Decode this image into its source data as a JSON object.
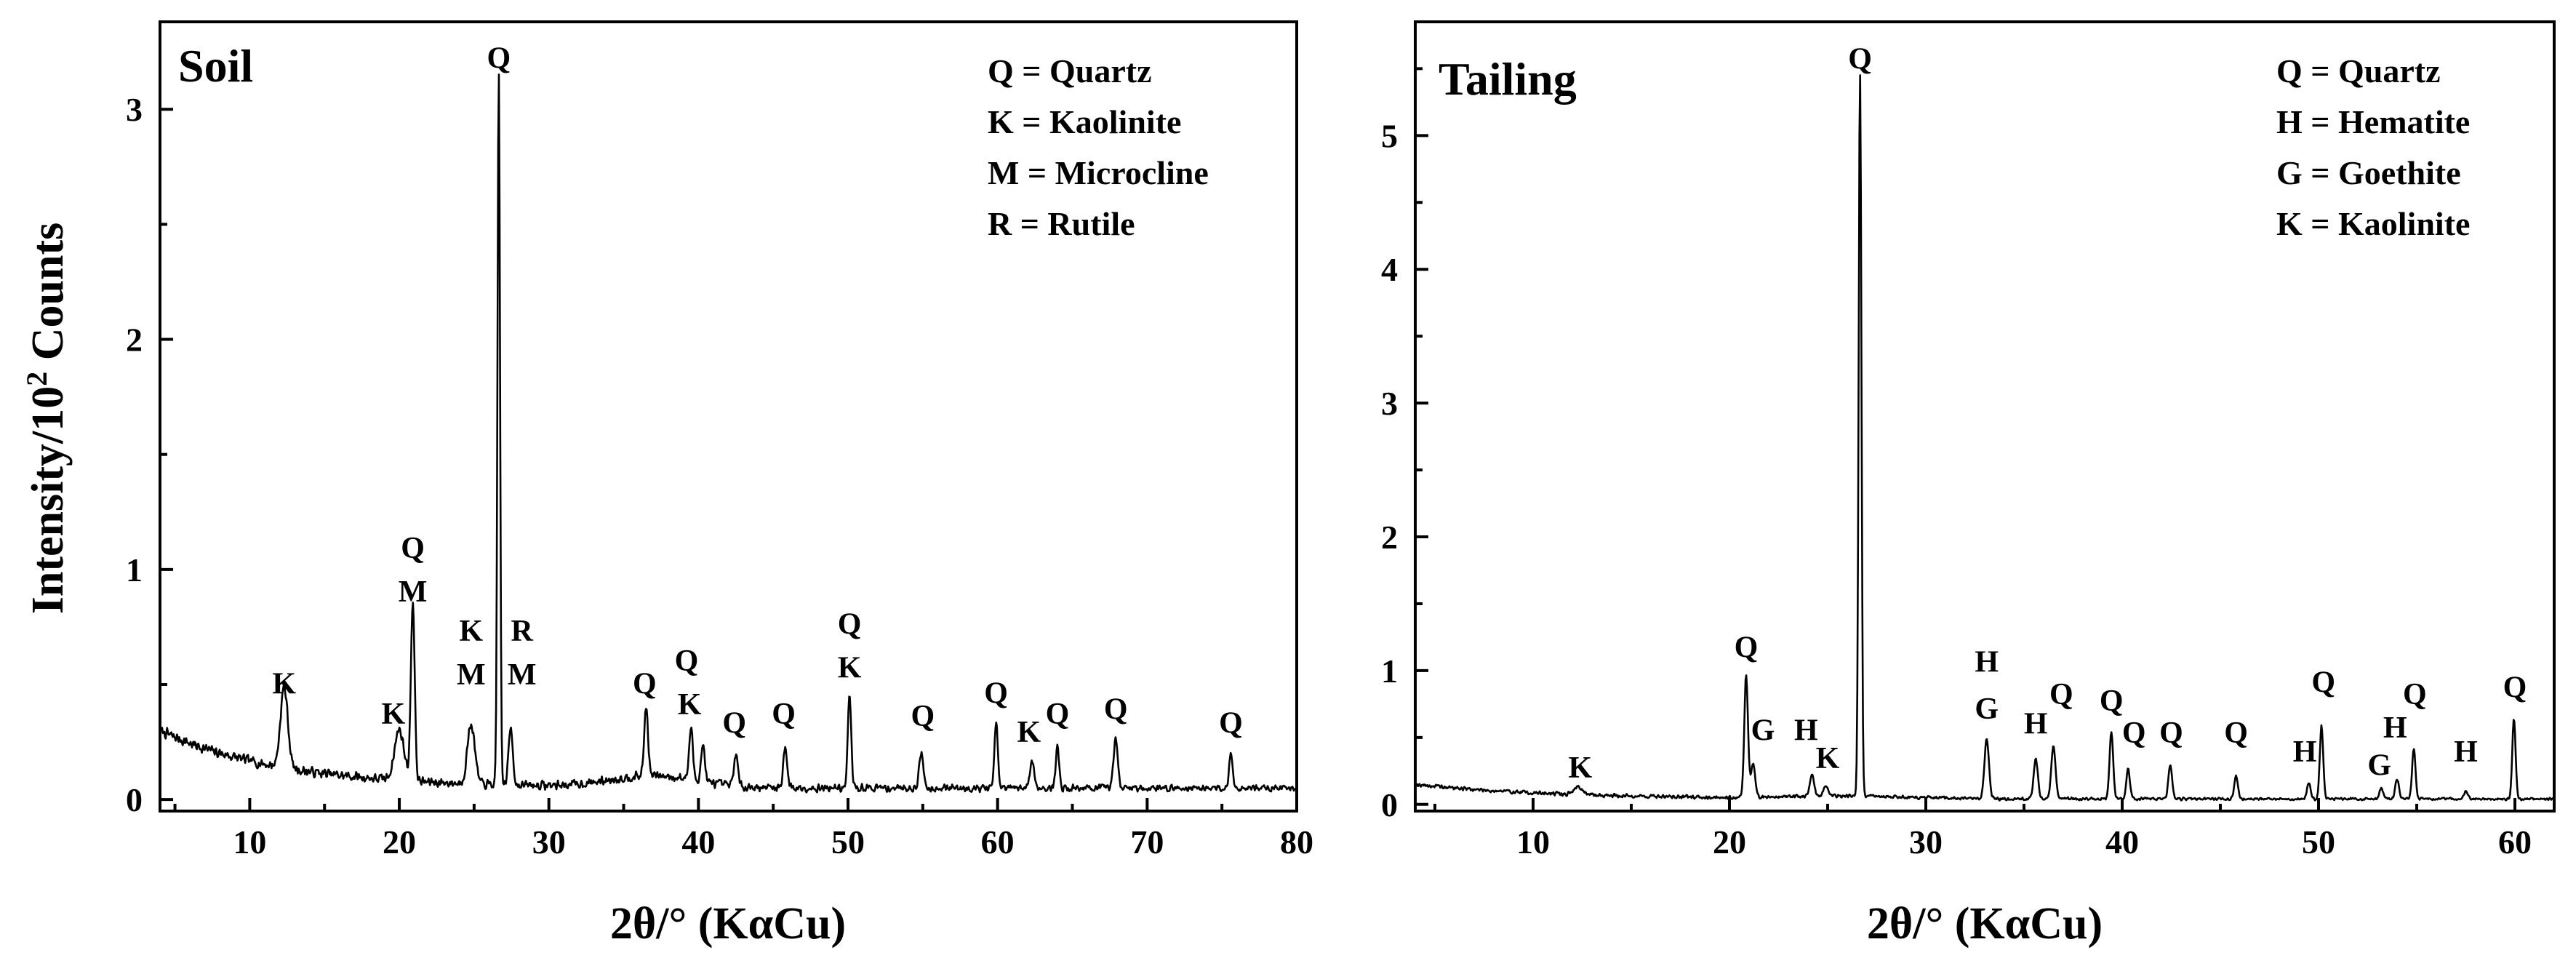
{
  "y_axis_label_main": "Intensity/10",
  "y_axis_label_sup": "2",
  "y_axis_label_tail": " Counts",
  "chart_data": [
    {
      "type": "line",
      "title": "Soil",
      "xlabel": "2θ/° (KαCu)",
      "ylabel": "Intensity/10² Counts",
      "xlim": [
        4,
        80
      ],
      "ylim": [
        -0.05,
        3.38
      ],
      "x_ticks": [
        10,
        20,
        30,
        40,
        50,
        60,
        70,
        80
      ],
      "y_ticks": [
        0,
        1,
        2,
        3
      ],
      "grid": false,
      "legend_position": "top-right",
      "legend": [
        "Q = Quartz",
        "K = Kaolinite",
        "M = Microcline",
        "R = Rutile"
      ],
      "background": {
        "start": 0.3,
        "end": 0.05,
        "decay": 8,
        "noise": 0.045,
        "hump_x": 37,
        "hump_height": 0.05
      },
      "peaks": [
        {
          "x": 12.3,
          "y": 0.35,
          "w": 0.35
        },
        {
          "x": 20.0,
          "y": 0.22,
          "w": 0.45
        },
        {
          "x": 20.9,
          "y": 0.78,
          "w": 0.18
        },
        {
          "x": 24.8,
          "y": 0.26,
          "w": 0.35
        },
        {
          "x": 26.65,
          "y": 3.1,
          "w": 0.12
        },
        {
          "x": 27.45,
          "y": 0.25,
          "w": 0.2
        },
        {
          "x": 36.5,
          "y": 0.3,
          "w": 0.18
        },
        {
          "x": 39.5,
          "y": 0.22,
          "w": 0.18
        },
        {
          "x": 40.3,
          "y": 0.16,
          "w": 0.18
        },
        {
          "x": 42.5,
          "y": 0.14,
          "w": 0.18
        },
        {
          "x": 45.8,
          "y": 0.18,
          "w": 0.18
        },
        {
          "x": 50.1,
          "y": 0.4,
          "w": 0.16
        },
        {
          "x": 54.9,
          "y": 0.15,
          "w": 0.2
        },
        {
          "x": 59.9,
          "y": 0.28,
          "w": 0.16
        },
        {
          "x": 62.3,
          "y": 0.12,
          "w": 0.2
        },
        {
          "x": 64.0,
          "y": 0.18,
          "w": 0.16
        },
        {
          "x": 67.9,
          "y": 0.22,
          "w": 0.2
        },
        {
          "x": 75.6,
          "y": 0.15,
          "w": 0.16
        }
      ],
      "annotations": [
        {
          "x": 26.65,
          "y": 3.18,
          "label": "Q"
        },
        {
          "x": 12.3,
          "y": 0.46,
          "label": "K"
        },
        {
          "x": 19.6,
          "y": 0.33,
          "label": "K"
        },
        {
          "x": 20.9,
          "y": 1.05,
          "label": "Q"
        },
        {
          "x": 20.9,
          "y": 0.86,
          "label": "M"
        },
        {
          "x": 24.8,
          "y": 0.69,
          "label": "K"
        },
        {
          "x": 24.8,
          "y": 0.5,
          "label": "M"
        },
        {
          "x": 28.2,
          "y": 0.69,
          "label": "R"
        },
        {
          "x": 28.2,
          "y": 0.5,
          "label": "M"
        },
        {
          "x": 36.4,
          "y": 0.46,
          "label": "Q"
        },
        {
          "x": 39.2,
          "y": 0.56,
          "label": "Q"
        },
        {
          "x": 39.4,
          "y": 0.37,
          "label": "K"
        },
        {
          "x": 42.4,
          "y": 0.29,
          "label": "Q"
        },
        {
          "x": 45.7,
          "y": 0.33,
          "label": "Q"
        },
        {
          "x": 50.1,
          "y": 0.72,
          "label": "Q"
        },
        {
          "x": 50.1,
          "y": 0.53,
          "label": "K"
        },
        {
          "x": 55.0,
          "y": 0.32,
          "label": "Q"
        },
        {
          "x": 59.9,
          "y": 0.42,
          "label": "Q"
        },
        {
          "x": 62.1,
          "y": 0.25,
          "label": "K"
        },
        {
          "x": 64.0,
          "y": 0.33,
          "label": "Q"
        },
        {
          "x": 67.9,
          "y": 0.35,
          "label": "Q"
        },
        {
          "x": 75.6,
          "y": 0.29,
          "label": "Q"
        }
      ]
    },
    {
      "type": "line",
      "title": "Tailing",
      "xlabel": "2θ/° (KαCu)",
      "ylabel": "",
      "xlim": [
        4,
        62
      ],
      "ylim": [
        -0.05,
        5.85
      ],
      "x_ticks": [
        10,
        20,
        30,
        40,
        50,
        60
      ],
      "y_ticks": [
        0,
        1,
        2,
        3,
        4,
        5
      ],
      "grid": false,
      "legend_position": "top-right",
      "legend": [
        "Q = Quartz",
        "H = Hematite",
        "G = Goethite",
        "K = Kaolinite"
      ],
      "background": {
        "start": 0.15,
        "end": 0.04,
        "decay": 7,
        "noise": 0.03,
        "hump_x": 26,
        "hump_height": 0.02
      },
      "peaks": [
        {
          "x": 12.3,
          "y": 0.06,
          "w": 0.3
        },
        {
          "x": 20.85,
          "y": 0.92,
          "w": 0.13
        },
        {
          "x": 21.2,
          "y": 0.25,
          "w": 0.15
        },
        {
          "x": 24.2,
          "y": 0.16,
          "w": 0.15
        },
        {
          "x": 24.9,
          "y": 0.08,
          "w": 0.15
        },
        {
          "x": 26.65,
          "y": 5.4,
          "w": 0.1
        },
        {
          "x": 33.1,
          "y": 0.45,
          "w": 0.16
        },
        {
          "x": 35.6,
          "y": 0.3,
          "w": 0.15
        },
        {
          "x": 36.5,
          "y": 0.4,
          "w": 0.15
        },
        {
          "x": 39.45,
          "y": 0.5,
          "w": 0.13
        },
        {
          "x": 40.3,
          "y": 0.22,
          "w": 0.13
        },
        {
          "x": 42.45,
          "y": 0.26,
          "w": 0.13
        },
        {
          "x": 45.8,
          "y": 0.17,
          "w": 0.13
        },
        {
          "x": 49.5,
          "y": 0.12,
          "w": 0.13
        },
        {
          "x": 50.15,
          "y": 0.55,
          "w": 0.12
        },
        {
          "x": 53.2,
          "y": 0.08,
          "w": 0.13
        },
        {
          "x": 54.0,
          "y": 0.15,
          "w": 0.13
        },
        {
          "x": 54.85,
          "y": 0.38,
          "w": 0.12
        },
        {
          "x": 57.5,
          "y": 0.06,
          "w": 0.13
        },
        {
          "x": 59.95,
          "y": 0.6,
          "w": 0.12
        }
      ],
      "annotations": [
        {
          "x": 26.65,
          "y": 5.5,
          "label": "Q"
        },
        {
          "x": 12.4,
          "y": 0.2,
          "label": "K"
        },
        {
          "x": 20.85,
          "y": 1.1,
          "label": "Q"
        },
        {
          "x": 21.7,
          "y": 0.48,
          "label": "G"
        },
        {
          "x": 23.9,
          "y": 0.48,
          "label": "H"
        },
        {
          "x": 25.0,
          "y": 0.27,
          "label": "K"
        },
        {
          "x": 33.1,
          "y": 0.99,
          "label": "H"
        },
        {
          "x": 33.1,
          "y": 0.64,
          "label": "G"
        },
        {
          "x": 35.6,
          "y": 0.53,
          "label": "H"
        },
        {
          "x": 36.9,
          "y": 0.75,
          "label": "Q"
        },
        {
          "x": 39.45,
          "y": 0.7,
          "label": "Q"
        },
        {
          "x": 40.6,
          "y": 0.46,
          "label": "Q"
        },
        {
          "x": 42.5,
          "y": 0.46,
          "label": "Q"
        },
        {
          "x": 45.8,
          "y": 0.46,
          "label": "Q"
        },
        {
          "x": 49.3,
          "y": 0.32,
          "label": "H"
        },
        {
          "x": 50.25,
          "y": 0.84,
          "label": "Q"
        },
        {
          "x": 53.1,
          "y": 0.22,
          "label": "G"
        },
        {
          "x": 53.9,
          "y": 0.5,
          "label": "H"
        },
        {
          "x": 54.9,
          "y": 0.75,
          "label": "Q"
        },
        {
          "x": 57.5,
          "y": 0.32,
          "label": "H"
        },
        {
          "x": 60.0,
          "y": 0.8,
          "label": "Q"
        }
      ]
    }
  ]
}
